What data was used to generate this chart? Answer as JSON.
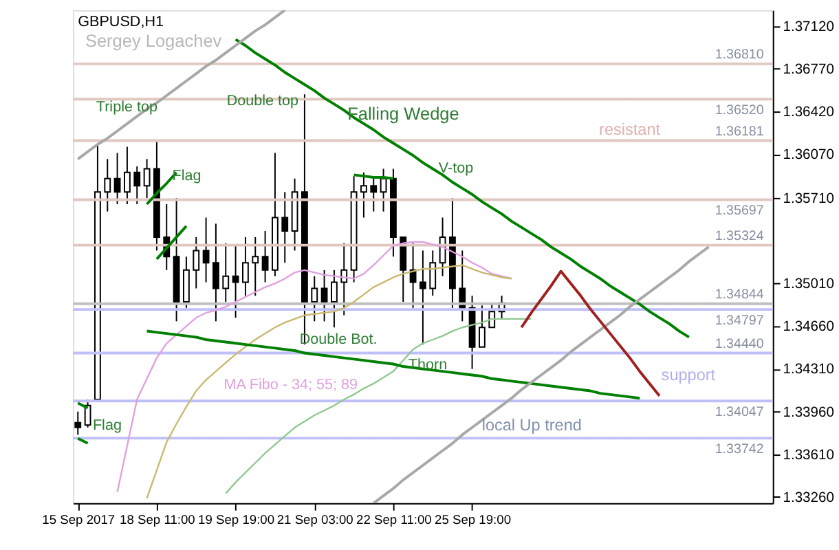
{
  "chart_data": {
    "type": "candlestick",
    "grid": false,
    "annotations": [
      "GBPUSD,H1",
      "Sergey Logachev",
      "Triple top",
      "Double top",
      "Falling Wedge",
      "Flag",
      "V-top",
      "Double Bot.",
      {
        "text": "Thorn",
        "y": 1.3451
      },
      "MA Fibo - 34; 55; 89",
      "local Up trend",
      "Flag",
      "resistant",
      "support"
    ],
    "categories": [
      "15 Sep 2017",
      null,
      null,
      null,
      null,
      null,
      null,
      null,
      "18 Sep 11:00",
      null,
      null,
      null,
      null,
      null,
      null,
      null,
      "19 Sep 19:00",
      null,
      null,
      null,
      null,
      null,
      null,
      null,
      "21 Sep 03:00",
      null,
      null,
      null,
      null,
      null,
      null,
      null,
      "22 Sep 11:00",
      null,
      null,
      null,
      null,
      null,
      null,
      null,
      "25 Sep 19:00",
      null,
      null,
      null,
      null,
      null,
      null,
      null,
      null,
      null,
      null,
      null,
      null,
      null,
      null,
      null,
      null,
      null,
      null,
      null,
      null,
      null,
      null,
      null,
      null,
      null,
      null,
      null,
      null,
      null,
      null
    ],
    "ohlc": [
      [
        1.3387,
        1.3396,
        1.3377,
        1.3383
      ],
      [
        1.3385,
        1.3406,
        1.3383,
        1.3401
      ],
      [
        1.3406,
        1.3615,
        1.3406,
        1.3576
      ],
      [
        1.3576,
        1.3603,
        1.356,
        1.3587
      ],
      [
        1.3587,
        1.3608,
        1.3566,
        1.3576
      ],
      [
        1.3576,
        1.3613,
        1.3566,
        1.3592
      ],
      [
        1.3592,
        1.3597,
        1.3566,
        1.3581
      ],
      [
        1.3581,
        1.3603,
        1.3571,
        1.3595
      ],
      [
        1.3595,
        1.3617,
        1.3528,
        1.3539
      ],
      [
        1.3539,
        1.3566,
        1.3512,
        1.3523
      ],
      [
        1.3523,
        1.3571,
        1.347,
        1.3486
      ],
      [
        1.3486,
        1.3523,
        1.3481,
        1.3512
      ],
      [
        1.3512,
        1.3539,
        1.3497,
        1.3528
      ],
      [
        1.3528,
        1.3555,
        1.3502,
        1.3518
      ],
      [
        1.3518,
        1.355,
        1.347,
        1.3497
      ],
      [
        1.3497,
        1.3534,
        1.3486,
        1.3507
      ],
      [
        1.3507,
        1.3532,
        1.3473,
        1.3502
      ],
      [
        1.3502,
        1.3539,
        1.3491,
        1.3518
      ],
      [
        1.3518,
        1.3539,
        1.3491,
        1.3523
      ],
      [
        1.3523,
        1.3544,
        1.3502,
        1.3512
      ],
      [
        1.3512,
        1.3608,
        1.3507,
        1.3555
      ],
      [
        1.3555,
        1.3576,
        1.3518,
        1.3544
      ],
      [
        1.3544,
        1.3587,
        1.3528,
        1.3576
      ],
      [
        1.3576,
        1.3656,
        1.3451,
        1.3486
      ],
      [
        1.3486,
        1.3507,
        1.347,
        1.3497
      ],
      [
        1.3497,
        1.3512,
        1.347,
        1.3486
      ],
      [
        1.3486,
        1.3512,
        1.3465,
        1.3502
      ],
      [
        1.3502,
        1.3534,
        1.3475,
        1.3512
      ],
      [
        1.3512,
        1.3589,
        1.3502,
        1.3576
      ],
      [
        1.3576,
        1.3592,
        1.3555,
        1.3581
      ],
      [
        1.3581,
        1.3587,
        1.356,
        1.3576
      ],
      [
        1.3576,
        1.3595,
        1.356,
        1.3587
      ],
      [
        1.3587,
        1.3595,
        1.3523,
        1.3539
      ],
      [
        1.3539,
        1.3539,
        1.3486,
        1.3512
      ],
      [
        1.3512,
        1.3534,
        1.3481,
        1.3502
      ],
      [
        1.3502,
        1.3528,
        1.3451,
        1.3497
      ],
      [
        1.3497,
        1.3528,
        1.3491,
        1.3518
      ],
      [
        1.3518,
        1.3555,
        1.3507,
        1.3539
      ],
      [
        1.3539,
        1.3571,
        1.3481,
        1.3497
      ],
      [
        1.3497,
        1.3528,
        1.347,
        1.3481
      ],
      [
        1.3481,
        1.3491,
        1.3431,
        1.3449
      ],
      [
        1.3449,
        1.3483,
        1.3449,
        1.3465
      ],
      [
        1.3465,
        1.3485,
        1.3465,
        1.3478
      ],
      [
        1.3478,
        1.3491,
        1.3472,
        1.3485
      ],
      null,
      null,
      null,
      null,
      null,
      null,
      null,
      null,
      null,
      null,
      null,
      null,
      null,
      null,
      null,
      null,
      null,
      null,
      null,
      null,
      null,
      null,
      null,
      null,
      null,
      null,
      null
    ],
    "series": [
      {
        "type": "line",
        "color": "#e0a0e0",
        "values": [
          null,
          null,
          null,
          null,
          1.333,
          1.3368,
          1.3406,
          1.3423,
          1.344,
          1.3452,
          1.3459,
          1.3466,
          1.3473,
          1.3477,
          1.3479,
          1.3482,
          1.3486,
          1.349,
          1.3494,
          1.3498,
          1.3501,
          1.3505,
          1.351,
          1.3512,
          1.351,
          1.3508,
          1.3507,
          1.3506,
          1.3505,
          1.3509,
          1.3516,
          1.3524,
          1.3532,
          1.3534,
          1.3535,
          1.3535,
          1.3533,
          1.3531,
          1.3527,
          1.3523,
          1.3518,
          1.3514,
          1.3509,
          1.3507,
          1.3505,
          null,
          null,
          null,
          null,
          null,
          null,
          null,
          null,
          null,
          null,
          null,
          null,
          null,
          null,
          null,
          null,
          null,
          null,
          null,
          null,
          null,
          null,
          null,
          null,
          null,
          null
        ]
      },
      {
        "type": "line",
        "color": "#c8b870",
        "values": [
          null,
          null,
          null,
          null,
          null,
          null,
          null,
          1.3325,
          1.3348,
          1.3371,
          1.3386,
          1.34,
          1.3413,
          1.3422,
          1.3429,
          1.3436,
          1.3443,
          1.3449,
          1.3455,
          1.346,
          1.3465,
          1.3469,
          1.3472,
          1.3475,
          1.3476,
          1.3477,
          1.3478,
          1.3481,
          1.3486,
          1.3492,
          1.3498,
          1.3502,
          1.3506,
          1.3509,
          1.3511,
          1.3513,
          1.3513,
          1.3514,
          1.3515,
          1.3516,
          1.3513,
          1.351,
          1.3508,
          1.3506,
          1.3505,
          null,
          null,
          null,
          null,
          null,
          null,
          null,
          null,
          null,
          null,
          null,
          null,
          null,
          null,
          null,
          null,
          null,
          null,
          null,
          null,
          null,
          null,
          null,
          null,
          null,
          null
        ]
      },
      {
        "type": "line",
        "color": "#90c890",
        "values": [
          null,
          null,
          null,
          null,
          null,
          null,
          null,
          null,
          null,
          null,
          null,
          null,
          null,
          null,
          null,
          1.3329,
          1.3338,
          1.3346,
          1.3354,
          1.3362,
          1.3369,
          1.3376,
          1.3383,
          1.3388,
          1.3393,
          1.3397,
          1.3401,
          1.3406,
          1.341,
          1.3415,
          1.3419,
          1.3424,
          1.3429,
          1.3438,
          1.3447,
          1.3452,
          1.3455,
          1.3458,
          1.3462,
          1.3465,
          1.3467,
          1.3469,
          1.3472,
          1.3472,
          1.3472,
          1.3472,
          1.3472,
          null,
          null,
          null,
          null,
          null,
          null,
          null,
          null,
          null,
          null,
          null,
          null,
          null,
          null,
          null,
          null,
          null,
          null,
          null,
          null,
          null,
          null,
          null,
          null
        ]
      },
      {
        "type": "line",
        "color": "#008000",
        "values": [
          null,
          null,
          null,
          null,
          null,
          null,
          null,
          null,
          null,
          null,
          null,
          null,
          null,
          null,
          null,
          null,
          1.3701,
          1.3696,
          1.369,
          1.3685,
          1.368,
          1.3674,
          1.3669,
          1.3664,
          1.3659,
          1.3653,
          1.3648,
          1.3643,
          1.3637,
          1.3632,
          1.3627,
          1.3621,
          1.3616,
          1.3611,
          1.3606,
          1.36,
          1.3595,
          1.359,
          1.3584,
          1.3579,
          1.3574,
          1.3568,
          1.3563,
          1.3558,
          1.3552,
          1.3547,
          1.3542,
          1.3537,
          1.3531,
          1.3526,
          1.3521,
          1.3515,
          1.351,
          1.3505,
          1.3499,
          1.3494,
          1.3489,
          1.3484,
          1.3478,
          1.3473,
          1.3468,
          1.3462,
          1.3457,
          null,
          null,
          null,
          null,
          null,
          null,
          null,
          null
        ]
      },
      {
        "type": "line",
        "color": "#008000",
        "values": [
          null,
          null,
          null,
          null,
          null,
          null,
          null,
          1.3462,
          1.3461,
          1.346,
          1.3459,
          1.3458,
          1.3457,
          1.3455,
          1.3454,
          1.3453,
          1.3452,
          1.3451,
          1.345,
          1.3449,
          1.3448,
          1.3447,
          1.3446,
          1.3444,
          1.3443,
          1.3442,
          1.3441,
          1.344,
          1.3439,
          1.3438,
          1.3437,
          1.3436,
          1.3435,
          1.3433,
          1.3432,
          1.3431,
          1.343,
          1.3429,
          1.3428,
          1.3427,
          1.3426,
          1.3425,
          1.3423,
          1.3422,
          1.3421,
          1.342,
          1.3419,
          1.3418,
          1.3417,
          1.3416,
          1.3415,
          1.3414,
          1.3413,
          1.3411,
          1.341,
          1.3409,
          1.3408,
          1.3407,
          null,
          null,
          null,
          null,
          null,
          null,
          null,
          null,
          null,
          null,
          null,
          null,
          null
        ]
      },
      {
        "type": "line",
        "color": "#008000",
        "values": [
          null,
          null,
          null,
          null,
          null,
          null,
          null,
          null,
          null,
          null,
          null,
          null,
          null,
          null,
          null,
          null,
          null,
          null,
          null,
          null,
          null,
          null,
          null,
          null,
          null,
          null,
          null,
          null,
          1.359,
          1.3589,
          1.3588,
          1.3588,
          1.3587,
          null,
          null,
          null,
          null,
          null,
          null,
          null,
          null,
          null,
          null,
          null,
          null,
          null,
          null,
          null,
          null,
          null,
          null,
          null,
          null,
          null,
          null,
          null,
          null,
          null,
          null,
          null,
          null,
          null,
          null,
          null,
          null,
          null,
          null,
          null,
          null,
          null,
          null
        ]
      },
      {
        "type": "line",
        "color": "#008000",
        "values": [
          null,
          null,
          null,
          null,
          null,
          null,
          null,
          1.3566,
          1.3575,
          1.3583,
          1.3592,
          null,
          null,
          null,
          null,
          null,
          null,
          null,
          null,
          null,
          null,
          null,
          null,
          null,
          null,
          null,
          null,
          null,
          null,
          null,
          null,
          null,
          null,
          null,
          null,
          null,
          null,
          null,
          null,
          null,
          null,
          null,
          null,
          null,
          null,
          null,
          null,
          null,
          null,
          null,
          null,
          null,
          null,
          null,
          null,
          null,
          null,
          null,
          null,
          null,
          null,
          null,
          null,
          null,
          null,
          null,
          null,
          null,
          null,
          null,
          null
        ]
      },
      {
        "type": "line",
        "color": "#008000",
        "values": [
          null,
          null,
          null,
          null,
          null,
          null,
          null,
          null,
          1.3521,
          1.353,
          1.3539,
          1.3548,
          null,
          null,
          null,
          null,
          null,
          null,
          null,
          null,
          null,
          null,
          null,
          null,
          null,
          null,
          null,
          null,
          null,
          null,
          null,
          null,
          null,
          null,
          null,
          null,
          null,
          null,
          null,
          null,
          null,
          null,
          null,
          null,
          null,
          null,
          null,
          null,
          null,
          null,
          null,
          null,
          null,
          null,
          null,
          null,
          null,
          null,
          null,
          null,
          null,
          null,
          null,
          null,
          null,
          null,
          null,
          null,
          null,
          null,
          null
        ]
      },
      {
        "type": "line",
        "color": "#008000",
        "values": [
          1.3403,
          1.3399,
          null,
          null,
          null,
          null,
          null,
          null,
          null,
          null,
          null,
          null,
          null,
          null,
          null,
          null,
          null,
          null,
          null,
          null,
          null,
          null,
          null,
          null,
          null,
          null,
          null,
          null,
          null,
          null,
          null,
          null,
          null,
          null,
          null,
          null,
          null,
          null,
          null,
          null,
          null,
          null,
          null,
          null,
          null,
          null,
          null,
          null,
          null,
          null,
          null,
          null,
          null,
          null,
          null,
          null,
          null,
          null,
          null,
          null,
          null,
          null,
          null,
          null,
          null,
          null,
          null,
          null,
          null,
          null,
          null
        ]
      },
      {
        "type": "line",
        "color": "#008000",
        "values": [
          1.3374,
          1.337,
          null,
          null,
          null,
          null,
          null,
          null,
          null,
          null,
          null,
          null,
          null,
          null,
          null,
          null,
          null,
          null,
          null,
          null,
          null,
          null,
          null,
          null,
          null,
          null,
          null,
          null,
          null,
          null,
          null,
          null,
          null,
          null,
          null,
          null,
          null,
          null,
          null,
          null,
          null,
          null,
          null,
          null,
          null,
          null,
          null,
          null,
          null,
          null,
          null,
          null,
          null,
          null,
          null,
          null,
          null,
          null,
          null,
          null,
          null,
          null,
          null,
          null,
          null,
          null,
          null,
          null,
          null,
          null,
          null
        ]
      },
      {
        "type": "line",
        "color": "#a8a8a8",
        "values": [
          1.3603,
          1.3609,
          1.3615,
          1.362,
          1.3626,
          1.3632,
          1.3638,
          1.3644,
          1.3649,
          1.3655,
          1.3661,
          1.3667,
          1.3673,
          1.3679,
          1.3684,
          1.369,
          1.3696,
          1.3702,
          1.3708,
          1.3713,
          1.3719,
          1.3725,
          null,
          null,
          null,
          null,
          null,
          null,
          null,
          null,
          null,
          null,
          null,
          null,
          null,
          null,
          null,
          null,
          null,
          null,
          null,
          null,
          null,
          null,
          null,
          null,
          null,
          null,
          null,
          null,
          null,
          null,
          null,
          null,
          null,
          null,
          null,
          null,
          null,
          null,
          null,
          null,
          null,
          null,
          null,
          null,
          null,
          null,
          null,
          null,
          null
        ]
      },
      {
        "type": "line",
        "color": "#a8a8a8",
        "values": [
          null,
          null,
          null,
          null,
          null,
          null,
          null,
          null,
          null,
          null,
          null,
          null,
          null,
          null,
          null,
          null,
          null,
          null,
          null,
          null,
          null,
          null,
          null,
          null,
          null,
          null,
          null,
          null,
          null,
          null,
          1.3321,
          1.3327,
          1.3333,
          1.334,
          1.3346,
          1.3352,
          1.3358,
          1.3364,
          1.337,
          1.3377,
          1.3383,
          1.3389,
          1.3395,
          1.3401,
          1.3407,
          1.3414,
          1.342,
          1.3426,
          1.3432,
          1.3438,
          1.3445,
          1.3451,
          1.3457,
          1.3463,
          1.3469,
          1.3475,
          1.3482,
          1.3488,
          1.3494,
          1.35,
          1.3506,
          1.3512,
          1.3519,
          1.3525,
          1.3531,
          null,
          null,
          null,
          null,
          null,
          null
        ]
      },
      {
        "type": "line",
        "color": "#a02020",
        "values": [
          null,
          null,
          null,
          null,
          null,
          null,
          null,
          null,
          null,
          null,
          null,
          null,
          null,
          null,
          null,
          null,
          null,
          null,
          null,
          null,
          null,
          null,
          null,
          null,
          null,
          null,
          null,
          null,
          null,
          null,
          null,
          null,
          null,
          null,
          null,
          null,
          null,
          null,
          null,
          null,
          null,
          null,
          null,
          null,
          null,
          1.3465,
          1.3477,
          1.3488,
          1.3499,
          1.3511,
          1.3501,
          1.3491,
          1.348,
          1.347,
          1.346,
          1.345,
          1.344,
          1.3429,
          1.3419,
          1.3409,
          null,
          null,
          null,
          null,
          null,
          null,
          null,
          null,
          null,
          null,
          null
        ]
      }
    ],
    "ylim": [
      1.3321,
      1.3725
    ],
    "yticks": [
      {
        "value": 1.3712,
        "label": "1.37120"
      },
      {
        "value": 1.3677,
        "label": "1.36770"
      },
      {
        "value": 1.3642,
        "label": "1.36420"
      },
      {
        "value": 1.3607,
        "label": "1.36070"
      },
      {
        "value": 1.3571,
        "label": "1.35710"
      },
      {
        "value": 1.3501,
        "label": "1.35010"
      },
      {
        "value": 1.3466,
        "label": "1.34660"
      },
      {
        "value": 1.3431,
        "label": "1.34310"
      },
      {
        "value": 1.3396,
        "label": "1.33960"
      },
      {
        "value": 1.3361,
        "label": "1.33610"
      },
      {
        "value": 1.3326,
        "label": "1.33260"
      }
    ],
    "ref_lines": [
      {
        "axis": "y",
        "value": 1.3681,
        "label": "1.36810",
        "color": "#e0c8c0"
      },
      {
        "axis": "y",
        "value": 1.3652,
        "label": "1.36520",
        "color": "#e0c8c0"
      },
      {
        "axis": "y",
        "value": 1.36181,
        "label": "1.36181",
        "color": "#e0c8c0"
      },
      {
        "axis": "y",
        "value": 1.35697,
        "label": "1.35697",
        "color": "#e0c8c0"
      },
      {
        "axis": "y",
        "value": 1.35324,
        "label": "1.35324",
        "color": "#e0c8c0"
      },
      {
        "axis": "y",
        "value": 1.34797,
        "label": "1.34797",
        "color": "#c0c0f8"
      },
      {
        "axis": "y",
        "value": 1.34844,
        "label": "1.34844",
        "color": "#c0c0c0"
      },
      {
        "axis": "y",
        "value": 1.34047,
        "label": "1.34047",
        "color": "#c0c0f8"
      },
      {
        "axis": "y",
        "value": 1.3444,
        "label": "1.34440",
        "color": "#c0c0f8"
      },
      {
        "axis": "y",
        "value": 1.33742,
        "label": "1.33742",
        "color": "#c0c0f8"
      }
    ]
  }
}
